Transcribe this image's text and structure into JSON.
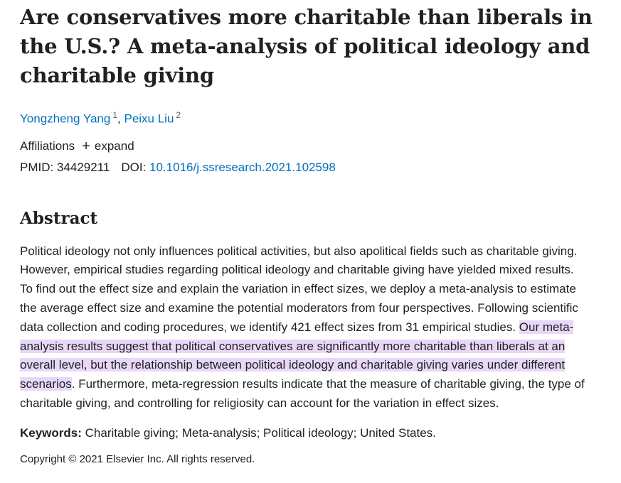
{
  "article": {
    "title": "Are conservatives more charitable than liberals in the U.S.? A meta-analysis of political ideology and charitable giving",
    "authors": [
      {
        "name": "Yongzheng Yang",
        "sup": "1"
      },
      {
        "name": "Peixu Liu",
        "sup": "2"
      }
    ],
    "author_separator": ",",
    "affiliations_label": "Affiliations",
    "expand_label": "expand",
    "pmid_label": "PMID:",
    "pmid": "34429211",
    "doi_label": "DOI:",
    "doi": "10.1016/j.ssresearch.2021.102598"
  },
  "abstract": {
    "heading": "Abstract",
    "text_before": "Political ideology not only influences political activities, but also apolitical fields such as charitable giving. However, empirical studies regarding political ideology and charitable giving have yielded mixed results. To find out the effect size and explain the variation in effect sizes, we deploy a meta-analysis to estimate the average effect size and examine the potential moderators from four perspectives. Following scientific data collection and coding procedures, we identify 421 effect sizes from 31 empirical studies. ",
    "text_highlighted": "Our meta-analysis results suggest that political conservatives are significantly more charitable than liberals at an overall level, but the relationship between political ideology and charitable giving varies under different scenarios",
    "text_after": ". Furthermore, meta-regression results indicate that the measure of charitable giving, the type of charitable giving, and controlling for religiosity can account for the variation in effect sizes.",
    "highlight_color": "#e8d8f8"
  },
  "keywords": {
    "label": "Keywords:",
    "text": "Charitable giving; Meta-analysis; Political ideology; United States."
  },
  "copyright": "Copyright © 2021 Elsevier Inc. All rights reserved.",
  "colors": {
    "link": "#0071bc",
    "text": "#212121"
  },
  "icons": {
    "expand": "plus-icon"
  }
}
